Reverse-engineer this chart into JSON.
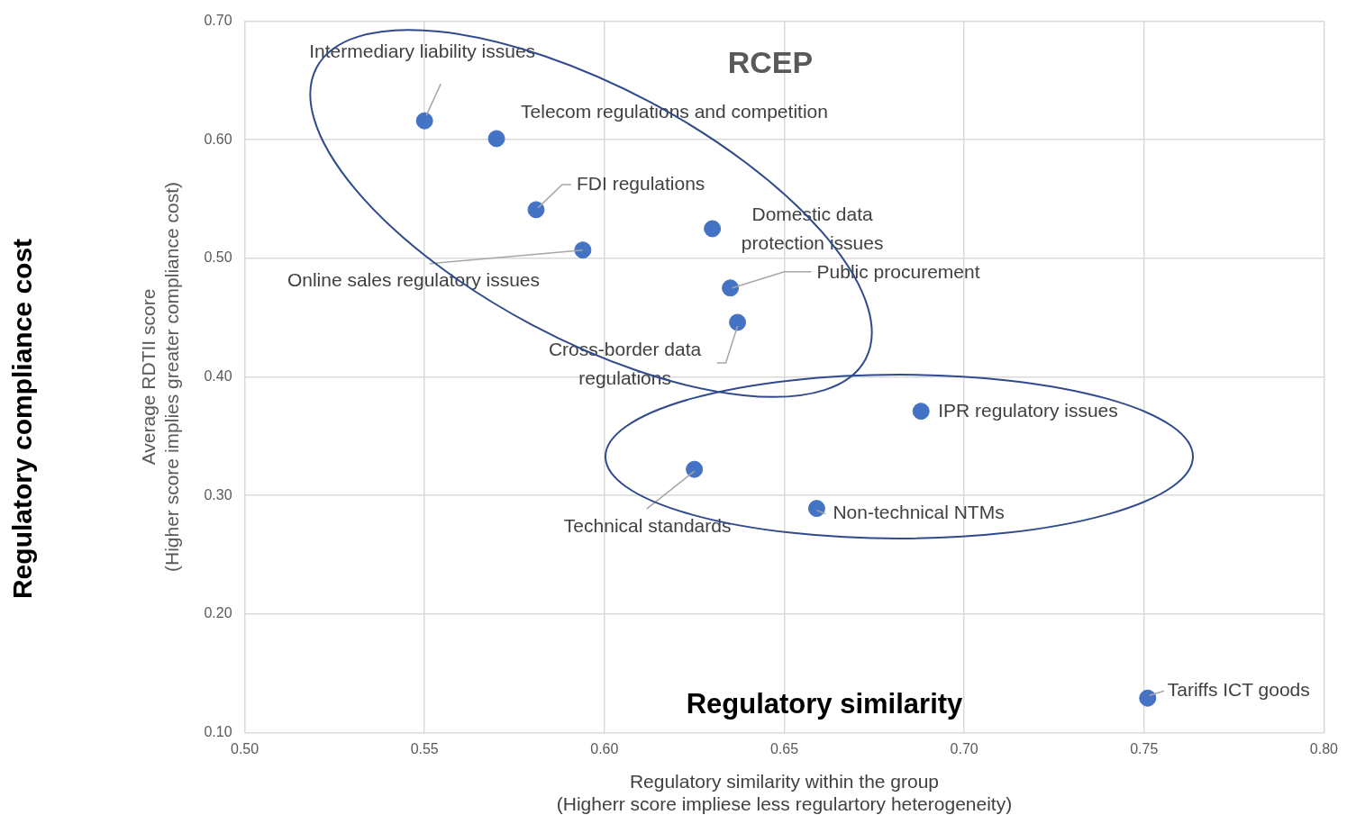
{
  "chart_data": {
    "type": "scatter",
    "xlabel": "Regulatory similarity within the group\n(Higherr score impliese less regulartory heterogeneity)",
    "ylabel": "Average RDTII score\n(Higher score implies greater compliance cost)",
    "x": [
      0.55,
      0.57,
      0.581,
      0.594,
      0.63,
      0.635,
      0.637,
      0.688,
      0.625,
      0.659,
      0.751
    ],
    "values": [
      0.616,
      0.601,
      0.541,
      0.507,
      0.525,
      0.475,
      0.446,
      0.371,
      0.322,
      0.289,
      0.129
    ],
    "color": "#4472c4",
    "marker": "circle",
    "grid": true,
    "xlim": [
      0.5,
      0.8
    ],
    "xticks": [
      {
        "value": 0.5,
        "label": "0.50"
      },
      {
        "value": 0.55,
        "label": "0.55"
      },
      {
        "value": 0.6,
        "label": "0.60"
      },
      {
        "value": 0.65,
        "label": "0.65"
      },
      {
        "value": 0.7,
        "label": "0.70"
      },
      {
        "value": 0.75,
        "label": "0.75"
      },
      {
        "value": 0.8,
        "label": "0.80"
      }
    ],
    "ylim": [
      0.1,
      0.7
    ],
    "yticks": [
      {
        "value": 0.1,
        "label": "0.10"
      },
      {
        "value": 0.2,
        "label": "0.20"
      },
      {
        "value": 0.3,
        "label": "0.30"
      },
      {
        "value": 0.4,
        "label": "0.40"
      },
      {
        "value": 0.5,
        "label": "0.50"
      },
      {
        "value": 0.6,
        "label": "0.60"
      },
      {
        "value": 0.7,
        "label": "0.70"
      }
    ],
    "annotations": [
      {
        "text": "Intermediary liability issues",
        "x": 0.55,
        "y": 0.616
      },
      {
        "text": "Telecom regulations and competition",
        "x": 0.57,
        "y": 0.601
      },
      {
        "text": "FDI regulations",
        "x": 0.581,
        "y": 0.541
      },
      {
        "text": "Online sales regulatory issues",
        "x": 0.594,
        "y": 0.507
      },
      {
        "text": "Domestic data\nprotection issues",
        "x": 0.63,
        "y": 0.525
      },
      {
        "text": "Public procurement",
        "x": 0.635,
        "y": 0.475
      },
      {
        "text": "Cross-border data\nregulations",
        "x": 0.637,
        "y": 0.446
      },
      {
        "text": "IPR regulatory issues",
        "x": 0.688,
        "y": 0.371
      },
      {
        "text": "Technical standards",
        "x": 0.625,
        "y": 0.322
      },
      {
        "text": "Non-technical NTMs",
        "x": 0.659,
        "y": 0.289
      },
      {
        "text": "Tariffs ICT goods",
        "x": 0.751,
        "y": 0.129
      },
      "RCEP",
      "Regulatory similarity",
      "Regulatory compliance cost"
    ]
  }
}
